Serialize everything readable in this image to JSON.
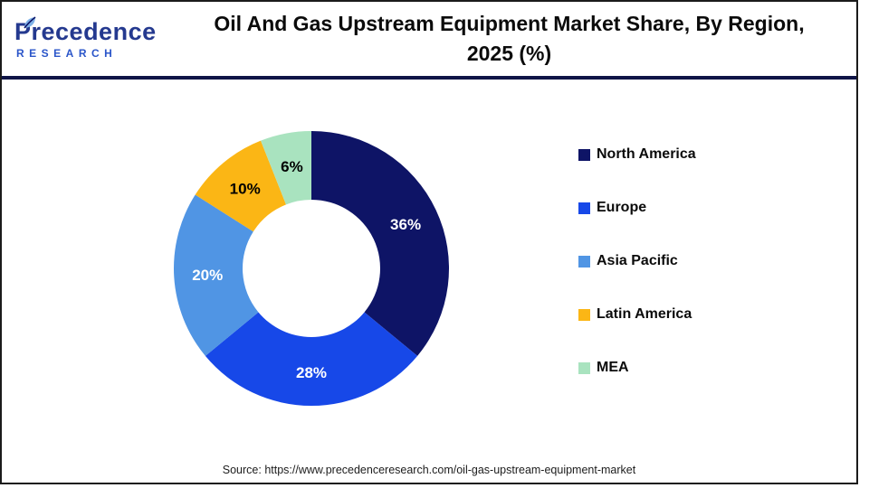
{
  "header": {
    "logo": {
      "brand": "Precedence",
      "sub": "RESEARCH",
      "brand_color": "#24398f",
      "sub_color": "#2a55c9"
    },
    "title_line1": "Oil And Gas Upstream Equipment Market Share, By Region,",
    "title_line2": "2025 (%)",
    "divider_color": "#0f1547"
  },
  "chart_data": {
    "type": "pie",
    "subtype": "donut",
    "title": "Oil And Gas Upstream Equipment Market Share, By Region, 2025 (%)",
    "categories": [
      "North America",
      "Europe",
      "Asia Pacific",
      "Latin America",
      "MEA"
    ],
    "values": [
      36,
      28,
      20,
      10,
      6
    ],
    "labels": [
      "36%",
      "28%",
      "20%",
      "10%",
      "6%"
    ],
    "unit": "%",
    "total": 100,
    "colors": [
      "#0e1466",
      "#1748e8",
      "#5095e4",
      "#fbb615",
      "#a9e3bf"
    ],
    "label_colors": [
      "#ffffff",
      "#ffffff",
      "#ffffff",
      "#000000",
      "#000000"
    ],
    "start_angle_deg": 0,
    "direction": "clockwise",
    "hole_ratio": 0.5,
    "legend_position": "right"
  },
  "footer": {
    "source": "Source: https://www.precedenceresearch.com/oil-gas-upstream-equipment-market"
  }
}
